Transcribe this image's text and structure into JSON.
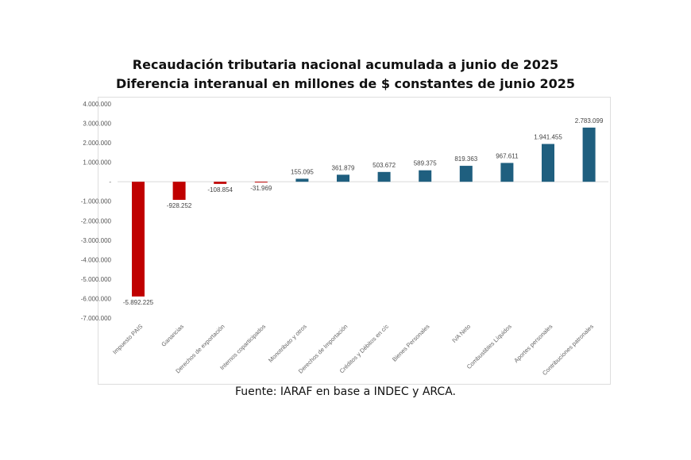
{
  "chart_data": {
    "type": "bar",
    "title": "Recaudación tributaria nacional acumulada a junio de 2025",
    "subtitle": "Diferencia interanual en millones de $ constantes de junio 2025",
    "source": "Fuente: IARAF en base a INDEC y ARCA.",
    "categories": [
      "Impuesto PAIS",
      "Ganancias",
      "Derechos de exportación",
      "Internos coparticipados",
      "Monotributo y otros",
      "Derechos de Importación",
      "Créditos y Débitos en c/c",
      "Bienes Personales",
      "IVA Neto",
      "Combustibles Líquidos",
      "Aportes personales",
      "Contribuciones patronales"
    ],
    "values": [
      -5892225,
      -928252,
      -108854,
      -31969,
      155095,
      361879,
      503672,
      589375,
      819363,
      967611,
      1941455,
      2783099
    ],
    "value_labels": [
      "-5.892.225",
      "-928.252",
      "-108.854",
      "-31.969",
      "155.095",
      "361.879",
      "503.672",
      "589.375",
      "819.363",
      "967.611",
      "1.941.455",
      "2.783.099"
    ],
    "ylim": [
      -7000000,
      4000000
    ],
    "yticks": [
      4000000,
      3000000,
      2000000,
      1000000,
      0,
      -1000000,
      -2000000,
      -3000000,
      -4000000,
      -5000000,
      -6000000,
      -7000000
    ],
    "ytick_labels": [
      "4.000.000",
      "3.000.000",
      "2.000.000",
      "1.000.000",
      "-",
      "-1.000.000",
      "-2.000.000",
      "-3.000.000",
      "-4.000.000",
      "-5.000.000",
      "-6.000.000",
      "-7.000.000"
    ],
    "colors": {
      "negative": "#c00000",
      "positive": "#1f5f7f"
    },
    "xlabel": "",
    "ylabel": "",
    "grid": false,
    "legend": "none"
  }
}
